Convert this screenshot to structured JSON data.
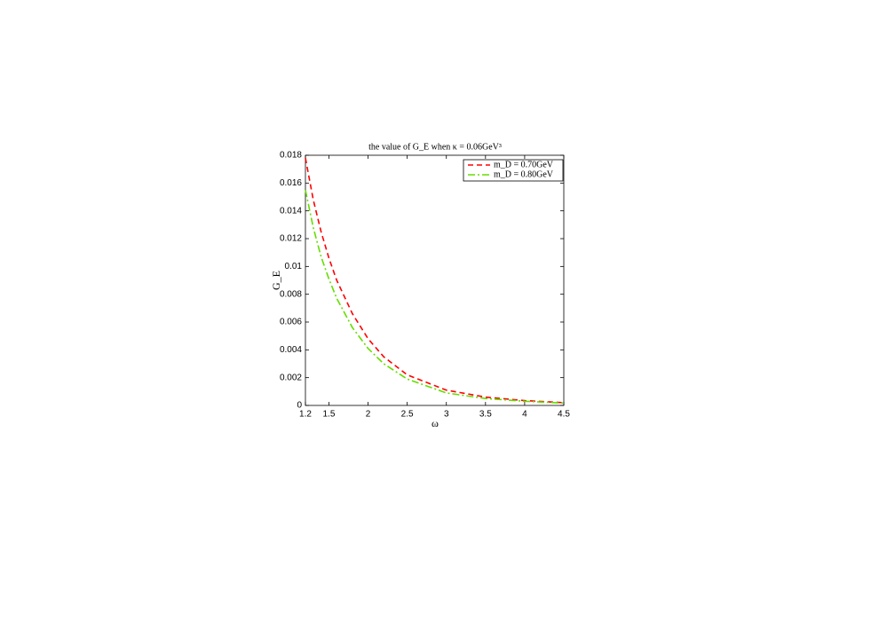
{
  "chart_data": {
    "type": "line",
    "title": "the value of G_E when κ = 0.06GeV³",
    "x_label": "ω",
    "y_label": "G_E",
    "x": [
      1.2,
      1.3,
      1.4,
      1.5,
      1.6,
      1.8,
      2.0,
      2.2,
      2.5,
      3.0,
      3.5,
      4.0,
      4.5
    ],
    "series": [
      {
        "name": "m_D = 0.70GeV",
        "color": "#ff0000",
        "dash": "6,4",
        "values": [
          0.0178,
          0.0148,
          0.0125,
          0.0106,
          0.009,
          0.0066,
          0.0048,
          0.0035,
          0.0022,
          0.0011,
          0.0006,
          0.00035,
          0.0002
        ]
      },
      {
        "name": "m_D = 0.80GeV",
        "color": "#66dd00",
        "dash": "8,3,2,3",
        "values": [
          0.0155,
          0.0128,
          0.0107,
          0.0091,
          0.0077,
          0.0056,
          0.0041,
          0.003,
          0.0019,
          0.0009,
          0.0005,
          0.0003,
          0.00017
        ]
      }
    ],
    "xlim": [
      1.2,
      4.5
    ],
    "xticks": [
      1.2,
      1.5,
      2,
      2.5,
      3,
      3.5,
      4,
      4.5
    ],
    "ylim": [
      0,
      0.018
    ],
    "yticks": [
      0,
      0.002,
      0.004,
      0.006,
      0.008,
      0.01,
      0.012,
      0.014,
      0.016,
      0.018
    ],
    "grid": false,
    "legend": "upper right"
  }
}
